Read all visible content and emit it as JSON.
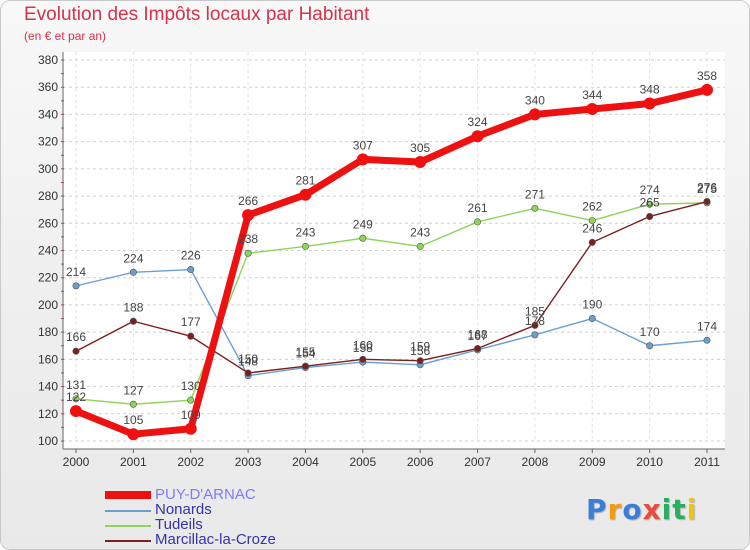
{
  "header": {
    "title": "Evolution des Impôts locaux par Habitant",
    "subtitle": "(en € et par an)"
  },
  "logo": {
    "text": "Proxiti",
    "letters": [
      "P",
      "r",
      "o",
      "x",
      "i",
      "t",
      "i"
    ],
    "colors": [
      "#3a7fd5",
      "#f39c12",
      "#3a7fd5",
      "#e74c3c",
      "#27ae60",
      "#27ae60",
      "#f1c40f"
    ]
  },
  "chart_data": {
    "type": "line",
    "title": "Evolution des Impôts locaux par Habitant",
    "subtitle": "(en € et par an)",
    "xlabel": "",
    "ylabel": "",
    "x": [
      "2000",
      "2001",
      "2002",
      "2003",
      "2004",
      "2005",
      "2006",
      "2007",
      "2008",
      "2009",
      "2010",
      "2011"
    ],
    "ylim": [
      100,
      380
    ],
    "yticks": [
      100,
      120,
      140,
      160,
      180,
      200,
      220,
      240,
      260,
      280,
      300,
      320,
      340,
      360,
      380
    ],
    "grid": "horizontal-dashed",
    "series": [
      {
        "name": "Nonards",
        "color": "#6a9fd0",
        "values": [
          214,
          224,
          226,
          148,
          154,
          158,
          156,
          167,
          178,
          190,
          170,
          174
        ]
      },
      {
        "name": "Tudeils",
        "color": "#8ed45a",
        "values": [
          131,
          127,
          130,
          238,
          243,
          249,
          243,
          261,
          271,
          262,
          274,
          275
        ]
      },
      {
        "name": "Marcillac-la-Croze",
        "color": "#7a2020",
        "values": [
          166,
          188,
          177,
          150,
          155,
          160,
          159,
          168,
          185,
          246,
          265,
          276
        ]
      },
      {
        "name": "PUY-D'ARNAC",
        "color": "#ee1111",
        "values": [
          122,
          105,
          109,
          266,
          281,
          307,
          305,
          324,
          340,
          344,
          348,
          358
        ]
      }
    ],
    "data_labels": [
      {
        "series": "Nonards",
        "labels": [
          "214",
          "224",
          "226",
          "148",
          "154",
          "158",
          "156",
          "167",
          "178",
          "190",
          "170",
          "174"
        ]
      },
      {
        "series": "Tudeils",
        "labels": [
          "131",
          "127",
          "130",
          "238",
          "243",
          "249",
          "243",
          "261",
          "271",
          "262",
          "274",
          "275"
        ]
      },
      {
        "series": "Marcillac-la-Croze",
        "labels": [
          "166",
          "188",
          "177",
          "150",
          "155",
          "160",
          "159",
          "168",
          "185",
          "246",
          "265",
          "276"
        ]
      },
      {
        "series": "PUY-D'ARNAC",
        "labels": [
          "122",
          "105",
          "109",
          "266",
          "281",
          "307",
          "305",
          "324",
          "340",
          "344",
          "348",
          "358"
        ]
      }
    ],
    "legend_position": "bottom-left"
  },
  "legend": {
    "items": [
      {
        "label": "PUY-D'ARNAC",
        "color": "#ee1111",
        "label_color": "#7b7bff"
      },
      {
        "label": "Nonards",
        "color": "#6a9fd0",
        "label_color": "#3333aa"
      },
      {
        "label": "Tudeils",
        "color": "#8ed45a",
        "label_color": "#3333aa"
      },
      {
        "label": "Marcillac-la-Croze",
        "color": "#7a2020",
        "label_color": "#3333aa"
      }
    ]
  }
}
